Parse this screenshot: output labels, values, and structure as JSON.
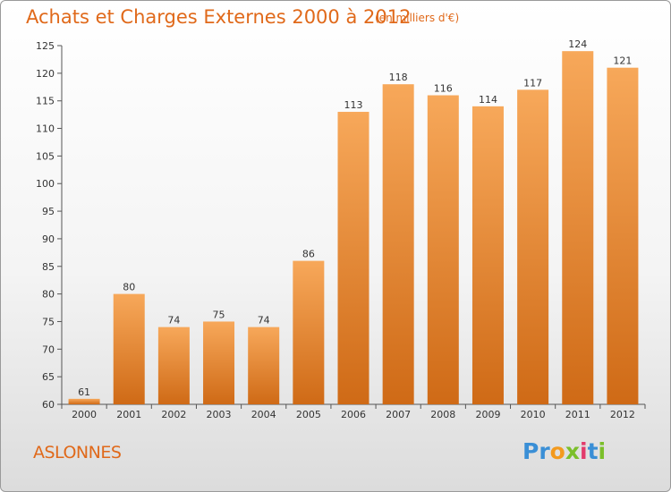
{
  "header": {
    "title": "Achats et Charges Externes 2000 à 2012",
    "subtitle": "(en milliers d'€)"
  },
  "footer": {
    "commune": "ASLONNES",
    "logo_letters": [
      "P",
      "r",
      "o",
      "x",
      "i",
      "t",
      "i"
    ],
    "logo_colors": [
      "#3a8fd6",
      "#3a8fd6",
      "#f39a1e",
      "#7bbf2a",
      "#e23b6b",
      "#3a8fd6",
      "#7bbf2a"
    ]
  },
  "colors": {
    "bar_top": "#f7a85a",
    "bar_bottom": "#cf6a16",
    "accent": "#e0691a"
  },
  "chart_data": {
    "type": "bar",
    "title": "Achats et Charges Externes 2000 à 2012",
    "subtitle": "(en milliers d'€)",
    "categories": [
      "2000",
      "2001",
      "2002",
      "2003",
      "2004",
      "2005",
      "2006",
      "2007",
      "2008",
      "2009",
      "2010",
      "2011",
      "2012"
    ],
    "values": [
      61,
      80,
      74,
      75,
      74,
      86,
      113,
      118,
      116,
      114,
      117,
      124,
      121
    ],
    "ylim": [
      60,
      125
    ],
    "yticks": [
      60,
      65,
      70,
      75,
      80,
      85,
      90,
      95,
      100,
      105,
      110,
      115,
      120,
      125
    ],
    "grid": false,
    "legend": "none"
  }
}
